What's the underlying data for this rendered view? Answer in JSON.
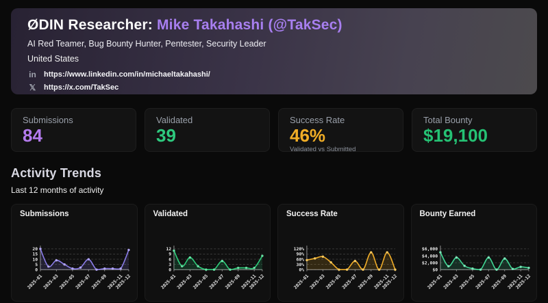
{
  "header": {
    "title_prefix": "ØDIN Researcher: ",
    "title_name": "Mike Takahashi (@TakSec)",
    "subtitle": "AI Red Teamer, Bug Bounty Hunter, Pentester, Security Leader",
    "location": "United States",
    "links": [
      {
        "icon": "linkedin-icon",
        "glyph": "in",
        "url": "https://www.linkedin.com/in/michaeltakahashi/"
      },
      {
        "icon": "x-icon",
        "glyph": "𝕏",
        "url": "https://x.com/TakSec"
      }
    ],
    "accent_color": "#a87ff0"
  },
  "stats": [
    {
      "label": "Submissions",
      "value": "84",
      "color": "#b47bee"
    },
    {
      "label": "Validated",
      "value": "39",
      "color": "#2ec97e"
    },
    {
      "label": "Success Rate",
      "value": "46%",
      "color": "#f0ad26",
      "sub": "Validated vs Submitted"
    },
    {
      "label": "Total Bounty",
      "value": "$19,100",
      "color": "#25c274"
    }
  ],
  "section": {
    "title": "Activity Trends",
    "subtitle": "Last 12 months of activity"
  },
  "chart_data": [
    {
      "type": "line",
      "title": "Submissions",
      "color": "#8a7ce8",
      "marker_color": "#b0a4f2",
      "x": [
        "2025-01",
        "2025-02",
        "2025-03",
        "2025-04",
        "2025-05",
        "2025-06",
        "2025-07",
        "2025-08",
        "2025-09",
        "2025-10",
        "2025-11",
        "2025-12"
      ],
      "values": [
        20,
        3,
        9,
        5,
        1,
        2,
        10,
        0,
        1,
        1,
        1,
        19
      ],
      "yticks": [
        0,
        5,
        10,
        15,
        20
      ],
      "ytick_labels": [
        "0",
        "5",
        "10",
        "15",
        "20"
      ],
      "xticks_shown": [
        "2025-01",
        "2025-03",
        "2025-05",
        "2025-07",
        "2025-09",
        "2025-11",
        "2025-12"
      ],
      "ylim": [
        0,
        20
      ],
      "grid": "dashed",
      "legend": "none"
    },
    {
      "type": "line",
      "title": "Validated",
      "color": "#2ecc7a",
      "marker_color": "#67e3a4",
      "x": [
        "2025-01",
        "2025-02",
        "2025-03",
        "2025-04",
        "2025-05",
        "2025-06",
        "2025-07",
        "2025-08",
        "2025-09",
        "2025-10",
        "2025-11",
        "2025-12"
      ],
      "values": [
        11,
        2,
        7,
        2,
        0,
        0,
        5,
        0,
        1,
        1,
        1,
        8
      ],
      "yticks": [
        0,
        3,
        6,
        9,
        12
      ],
      "ytick_labels": [
        "0",
        "3",
        "6",
        "9",
        "12"
      ],
      "xticks_shown": [
        "2025-01",
        "2025-03",
        "2025-05",
        "2025-07",
        "2025-09",
        "2025-11",
        "2025-12"
      ],
      "ylim": [
        0,
        12
      ],
      "grid": "dashed",
      "legend": "none"
    },
    {
      "type": "line",
      "title": "Success Rate",
      "color": "#efac28",
      "marker_color": "#f7c95e",
      "x": [
        "2025-01",
        "2025-02",
        "2025-03",
        "2025-04",
        "2025-05",
        "2025-06",
        "2025-07",
        "2025-08",
        "2025-09",
        "2025-10",
        "2025-11",
        "2025-12"
      ],
      "values": [
        55,
        65,
        75,
        42,
        0,
        0,
        50,
        0,
        100,
        0,
        100,
        0
      ],
      "yticks": [
        0,
        30,
        60,
        90,
        120
      ],
      "ytick_labels": [
        "0%",
        "30%",
        "60%",
        "90%",
        "120%"
      ],
      "xticks_shown": [
        "2025-01",
        "2025-03",
        "2025-05",
        "2025-07",
        "2025-09",
        "2025-11",
        "2025-12"
      ],
      "ylim": [
        0,
        120
      ],
      "grid": "dashed",
      "legend": "none"
    },
    {
      "type": "line",
      "title": "Bounty Earned",
      "color": "#3fd593",
      "marker_color": "#7ae7b8",
      "x": [
        "2025-01",
        "2025-02",
        "2025-03",
        "2025-04",
        "2025-05",
        "2025-06",
        "2025-07",
        "2025-08",
        "2025-09",
        "2025-10",
        "2025-11",
        "2025-12"
      ],
      "values": [
        5000,
        1000,
        3500,
        1100,
        300,
        0,
        3500,
        0,
        3200,
        200,
        800,
        500
      ],
      "yticks": [
        0,
        2000,
        4000,
        6000
      ],
      "ytick_labels": [
        "$0",
        "$2,000",
        "$4,000",
        "$6,000"
      ],
      "xticks_shown": [
        "2025-01",
        "2025-03",
        "2025-05",
        "2025-07",
        "2025-09",
        "2025-11",
        "2025-12"
      ],
      "ylim": [
        0,
        6000
      ],
      "grid": "dashed",
      "legend": "none"
    }
  ]
}
